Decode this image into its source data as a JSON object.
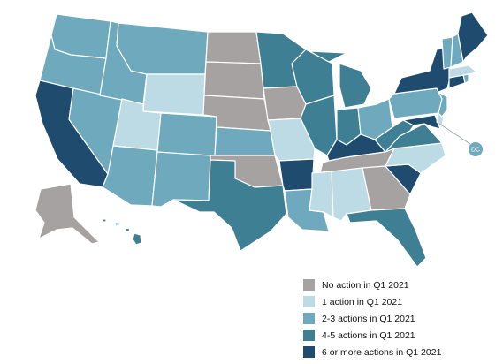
{
  "colors": {
    "none": "#a6a2a1",
    "one": "#bcdbe5",
    "two_three": "#6ea9be",
    "four_five": "#3f7f94",
    "six_plus": "#1e4b6e",
    "border": "#ffffff"
  },
  "legend": [
    {
      "key": "none",
      "label": "No action in Q1 2021"
    },
    {
      "key": "one",
      "label": "1 action in Q1 2021"
    },
    {
      "key": "two_three",
      "label": "2-3 actions in Q1 2021"
    },
    {
      "key": "four_five",
      "label": "4-5 actions in Q1 2021"
    },
    {
      "key": "six_plus",
      "label": "6 or more actions in Q1 2021"
    }
  ],
  "dc_marker": {
    "label": "DC",
    "category": "two_three"
  },
  "states": [
    {
      "name": "Washington",
      "category": "two_three"
    },
    {
      "name": "Oregon",
      "category": "two_three"
    },
    {
      "name": "California",
      "category": "six_plus"
    },
    {
      "name": "Idaho",
      "category": "two_three"
    },
    {
      "name": "Nevada",
      "category": "two_three"
    },
    {
      "name": "Montana",
      "category": "two_three"
    },
    {
      "name": "Wyoming",
      "category": "one"
    },
    {
      "name": "Utah",
      "category": "one"
    },
    {
      "name": "Arizona",
      "category": "two_three"
    },
    {
      "name": "Colorado",
      "category": "two_three"
    },
    {
      "name": "New Mexico",
      "category": "two_three"
    },
    {
      "name": "North Dakota",
      "category": "none"
    },
    {
      "name": "South Dakota",
      "category": "none"
    },
    {
      "name": "Nebraska",
      "category": "none"
    },
    {
      "name": "Kansas",
      "category": "two_three"
    },
    {
      "name": "Oklahoma",
      "category": "none"
    },
    {
      "name": "Texas",
      "category": "four_five"
    },
    {
      "name": "Minnesota",
      "category": "four_five"
    },
    {
      "name": "Iowa",
      "category": "none"
    },
    {
      "name": "Missouri",
      "category": "one"
    },
    {
      "name": "Arkansas",
      "category": "six_plus"
    },
    {
      "name": "Louisiana",
      "category": "two_three"
    },
    {
      "name": "Wisconsin",
      "category": "four_five"
    },
    {
      "name": "Illinois",
      "category": "four_five"
    },
    {
      "name": "Michigan",
      "category": "four_five"
    },
    {
      "name": "Indiana",
      "category": "four_five"
    },
    {
      "name": "Ohio",
      "category": "two_three"
    },
    {
      "name": "Kentucky",
      "category": "six_plus"
    },
    {
      "name": "Tennessee",
      "category": "none"
    },
    {
      "name": "Mississippi",
      "category": "one"
    },
    {
      "name": "Alabama",
      "category": "one"
    },
    {
      "name": "Georgia",
      "category": "none"
    },
    {
      "name": "Florida",
      "category": "four_five"
    },
    {
      "name": "South Carolina",
      "category": "six_plus"
    },
    {
      "name": "North Carolina",
      "category": "one"
    },
    {
      "name": "Virginia",
      "category": "four_five"
    },
    {
      "name": "West Virginia",
      "category": "four_five"
    },
    {
      "name": "Pennsylvania",
      "category": "two_three"
    },
    {
      "name": "New York",
      "category": "six_plus"
    },
    {
      "name": "New Jersey",
      "category": "two_three"
    },
    {
      "name": "Delaware",
      "category": "one"
    },
    {
      "name": "Maryland",
      "category": "six_plus"
    },
    {
      "name": "Connecticut",
      "category": "six_plus"
    },
    {
      "name": "Rhode Island",
      "category": "two_three"
    },
    {
      "name": "Massachusetts",
      "category": "one"
    },
    {
      "name": "Vermont",
      "category": "two_three"
    },
    {
      "name": "New Hampshire",
      "category": "two_three"
    },
    {
      "name": "Maine",
      "category": "six_plus"
    },
    {
      "name": "Alaska",
      "category": "none"
    },
    {
      "name": "Hawaii",
      "category": "four_five"
    }
  ]
}
